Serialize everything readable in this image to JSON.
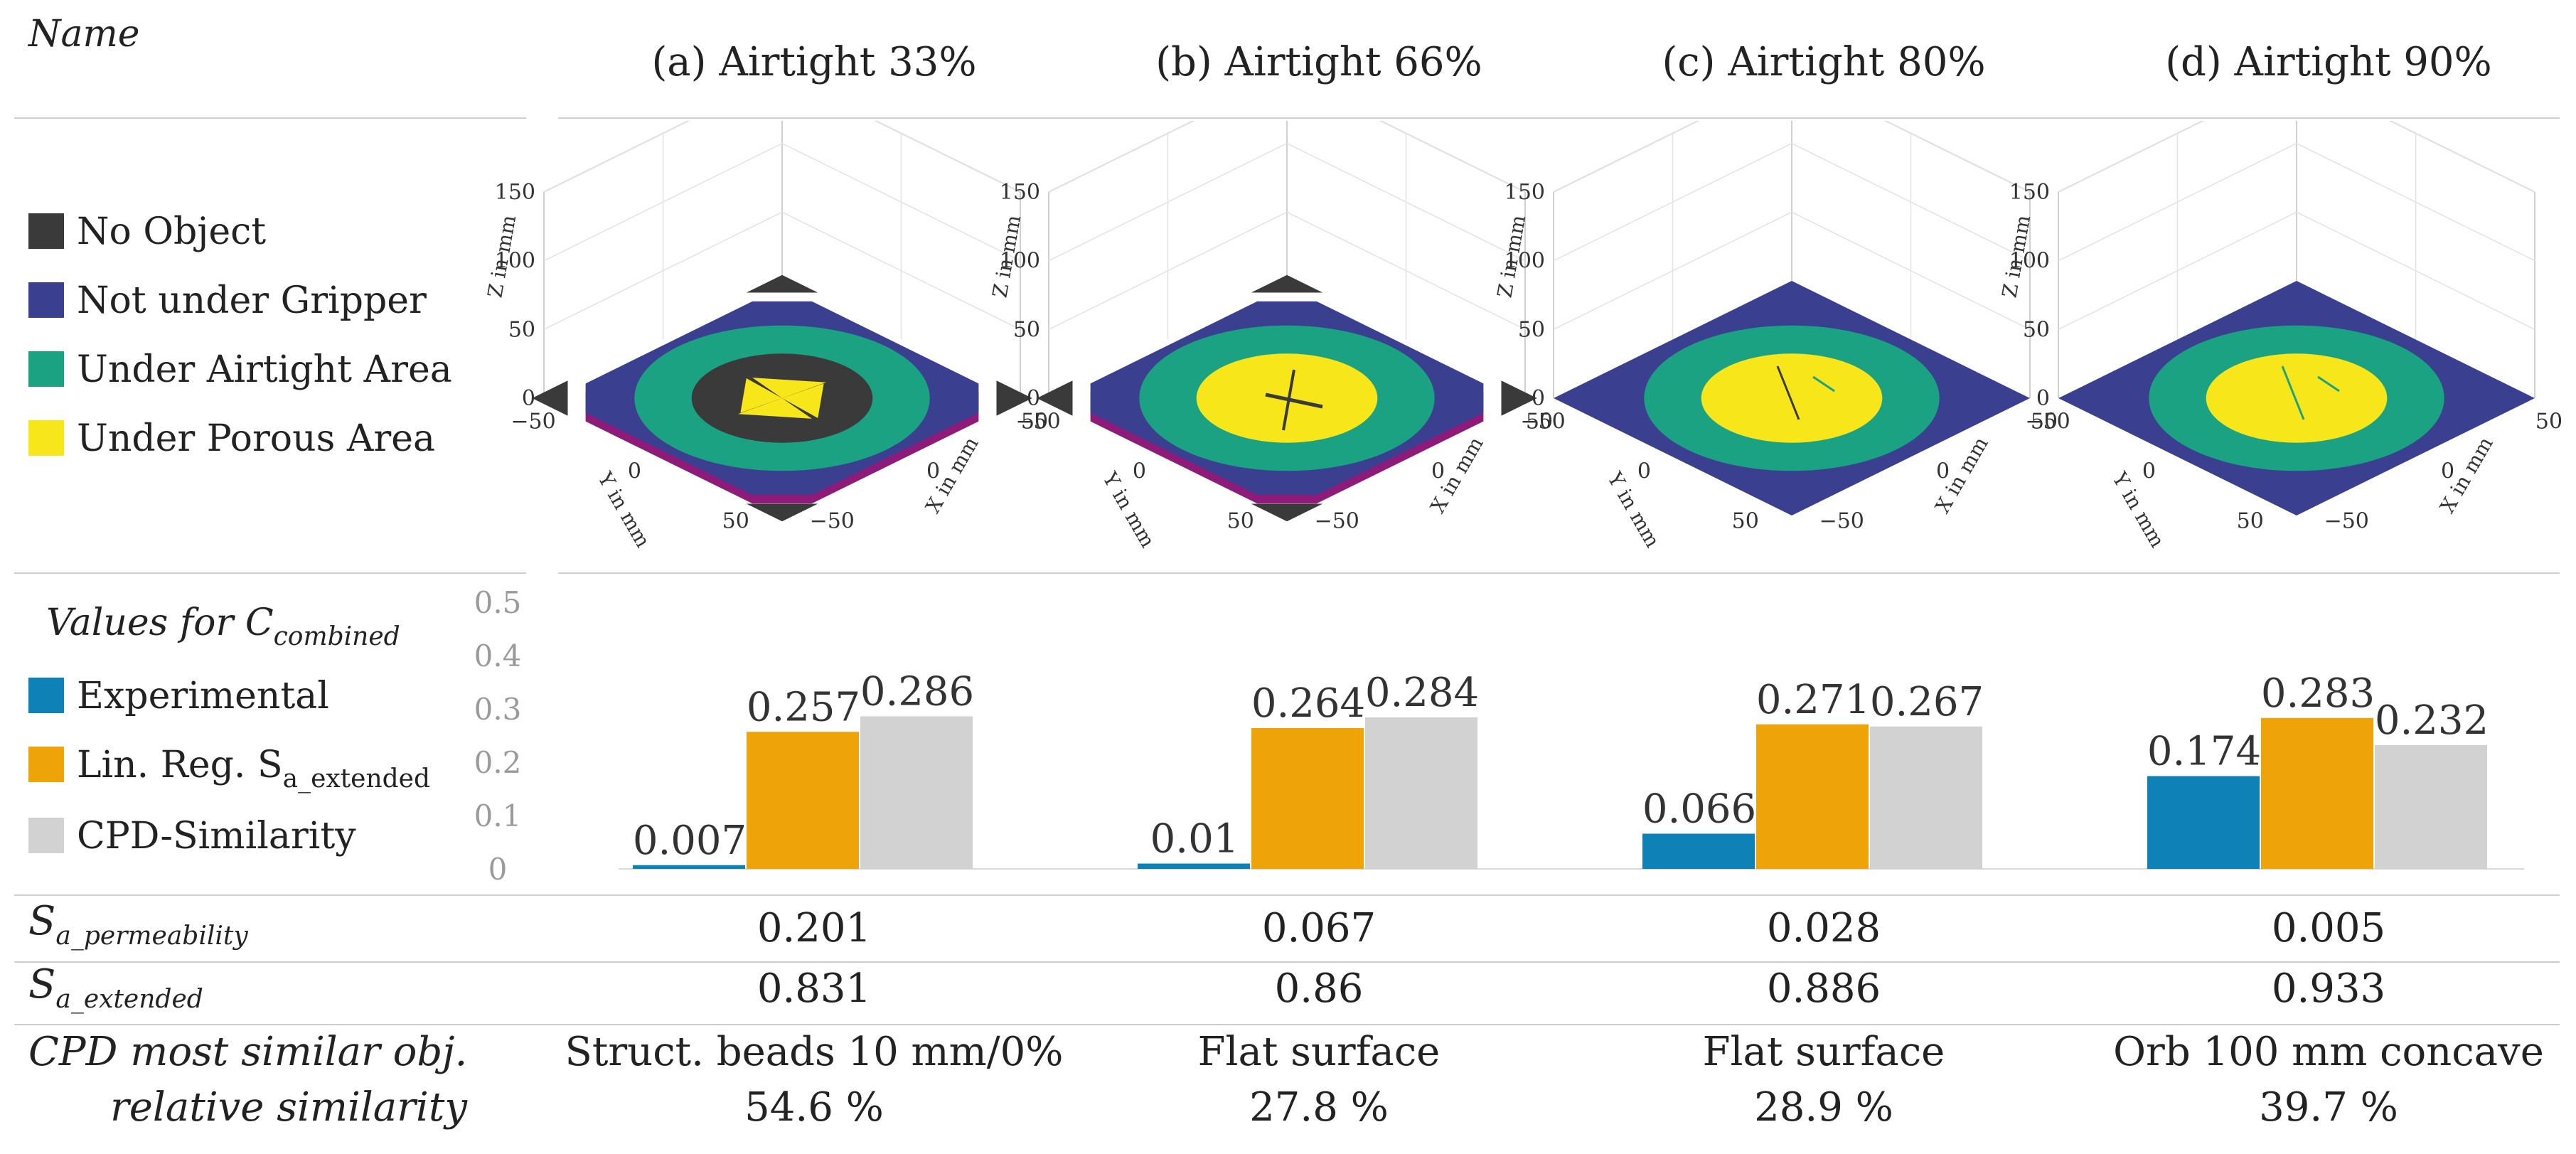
{
  "header": {
    "name_label": "Name",
    "columns": [
      "(a) Airtight 33%",
      "(b) Airtight 66%",
      "(c) Airtight 80%",
      "(d) Airtight 90%"
    ]
  },
  "legend_3d": {
    "items": [
      {
        "label": "No Object",
        "color": "#3a3a3a"
      },
      {
        "label": "Not under Gripper",
        "color": "#3b3f8f"
      },
      {
        "label": "Under Airtight Area",
        "color": "#1aa283"
      },
      {
        "label": "Under Porous Area",
        "color": "#f6e61a"
      }
    ]
  },
  "plots_3d": {
    "z_label": "Z in mm",
    "y_label": "Y in mm",
    "x_label": "X in mm",
    "z_ticks": [
      "0",
      "50",
      "100",
      "150"
    ],
    "y_ticks": [
      "−50",
      "0",
      "50"
    ],
    "x_ticks": [
      "−50",
      "0",
      "50"
    ]
  },
  "chart_legend": {
    "title_main": "Values for C",
    "title_sub": "combined",
    "items": [
      {
        "label": "Experimental",
        "color": "#0e82b6"
      },
      {
        "label": "Lin. Reg. S",
        "sub": "a_extended",
        "color": "#eea408"
      },
      {
        "label": "CPD-Similarity",
        "color": "#d2d2d2"
      }
    ]
  },
  "chart_data": {
    "type": "bar",
    "categories": [
      "(a) Airtight 33%",
      "(b) Airtight 66%",
      "(c) Airtight 80%",
      "(d) Airtight 90%"
    ],
    "series": [
      {
        "name": "Experimental",
        "values": [
          0.007,
          0.01,
          0.066,
          0.174
        ]
      },
      {
        "name": "Lin. Reg. S_a_extended",
        "values": [
          0.257,
          0.264,
          0.271,
          0.283
        ]
      },
      {
        "name": "CPD-Similarity",
        "values": [
          0.286,
          0.284,
          0.267,
          0.232
        ]
      }
    ],
    "value_labels": [
      [
        "0.007",
        "0.257",
        "0.286"
      ],
      [
        "0.01",
        "0.264",
        "0.284"
      ],
      [
        "0.066",
        "0.271",
        "0.267"
      ],
      [
        "0.174",
        "0.283",
        "0.232"
      ]
    ],
    "ylim": [
      0,
      0.5
    ],
    "yticks": [
      "0",
      "0.1",
      "0.2",
      "0.3",
      "0.4",
      "0.5"
    ],
    "colors": [
      "#0e82b6",
      "#eea408",
      "#d2d2d2"
    ]
  },
  "rows": {
    "permeability": {
      "symbol": "S",
      "sub": "a_permeability",
      "values": [
        "0.201",
        "0.067",
        "0.028",
        "0.005"
      ]
    },
    "extended": {
      "symbol": "S",
      "sub": "a_extended",
      "values": [
        "0.831",
        "0.86",
        "0.886",
        "0.933"
      ]
    },
    "cpd": {
      "label_line1": "CPD most similar obj.",
      "label_line2": "relative similarity",
      "objects": [
        "Struct. beads 10 mm/0%",
        "Flat surface",
        "Flat surface",
        "Orb 100 mm concave"
      ],
      "similarity": [
        "54.6 %",
        "27.8 %",
        "28.9 %",
        "39.7 %"
      ]
    }
  }
}
